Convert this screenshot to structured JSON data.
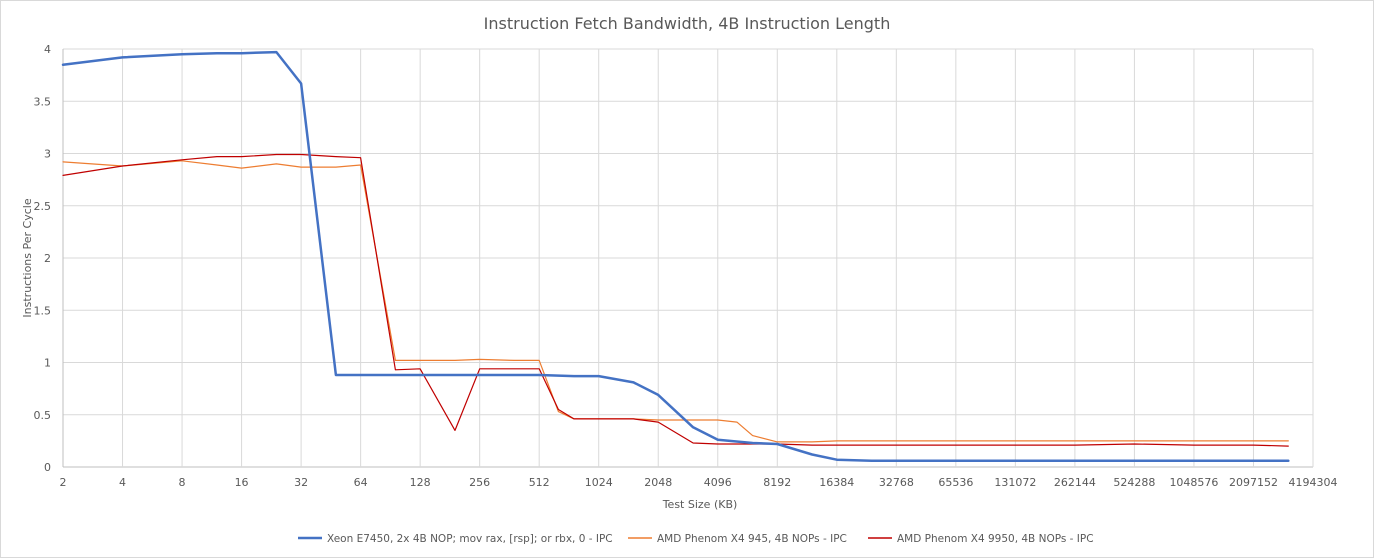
{
  "chart_data": {
    "type": "line",
    "title": "Instruction Fetch Bandwidth, 4B Instruction Length",
    "xlabel": "Test Size (KB)",
    "ylabel": "Instructions Per Cycle",
    "x_scale": "log2",
    "x_ticks": [
      "2",
      "4",
      "8",
      "16",
      "32",
      "64",
      "128",
      "256",
      "512",
      "1024",
      "2048",
      "4096",
      "8192",
      "16384",
      "32768",
      "65536",
      "131072",
      "262144",
      "524288",
      "1048576",
      "2097152",
      "4194304"
    ],
    "y_ticks": [
      "0",
      "0.5",
      "1",
      "1.5",
      "2",
      "2.5",
      "3",
      "3.5",
      "4"
    ],
    "ylim": [
      0,
      4
    ],
    "grid": true,
    "legend_position": "bottom",
    "series": [
      {
        "name": "Xeon E7450, 2x 4B NOP; mov rax, [rsp]; or rbx, 0 - IPC",
        "color": "#4472c4",
        "stroke": 2.5,
        "x": [
          2,
          4,
          8,
          12,
          16,
          24,
          32,
          48,
          64,
          96,
          128,
          192,
          256,
          384,
          512,
          768,
          1024,
          1536,
          2048,
          3072,
          4096,
          6144,
          8192,
          12288,
          16384,
          24576,
          32768,
          65536,
          131072,
          262144,
          524288,
          1048576,
          2097152,
          3145728
        ],
        "values": [
          3.85,
          3.92,
          3.95,
          3.96,
          3.96,
          3.97,
          3.67,
          0.88,
          0.88,
          0.88,
          0.88,
          0.88,
          0.88,
          0.88,
          0.88,
          0.87,
          0.87,
          0.81,
          0.69,
          0.38,
          0.26,
          0.23,
          0.22,
          0.12,
          0.07,
          0.06,
          0.06,
          0.06,
          0.06,
          0.06,
          0.06,
          0.06,
          0.06,
          0.06
        ]
      },
      {
        "name": "AMD Phenom X4 945, 4B NOPs - IPC",
        "color": "#ed7d31",
        "stroke": 1.2,
        "x": [
          2,
          4,
          8,
          12,
          16,
          24,
          32,
          48,
          64,
          96,
          128,
          192,
          256,
          384,
          512,
          640,
          768,
          1024,
          1536,
          2048,
          3072,
          4096,
          5120,
          6144,
          8192,
          12288,
          16384,
          32768,
          65536,
          131072,
          262144,
          524288,
          1048576,
          2097152,
          3145728
        ],
        "values": [
          2.92,
          2.88,
          2.93,
          2.89,
          2.86,
          2.9,
          2.87,
          2.87,
          2.89,
          1.02,
          1.02,
          1.02,
          1.03,
          1.02,
          1.02,
          0.53,
          0.46,
          0.46,
          0.46,
          0.45,
          0.45,
          0.45,
          0.43,
          0.3,
          0.24,
          0.24,
          0.25,
          0.25,
          0.25,
          0.25,
          0.25,
          0.25,
          0.25,
          0.25,
          0.25
        ]
      },
      {
        "name": "AMD Phenom X4 9950, 4B NOPs - IPC",
        "color": "#c00000",
        "stroke": 1.2,
        "x": [
          2,
          4,
          8,
          12,
          16,
          24,
          32,
          48,
          64,
          96,
          128,
          192,
          256,
          384,
          512,
          640,
          768,
          1024,
          1536,
          2048,
          3072,
          4096,
          6144,
          8192,
          12288,
          16384,
          32768,
          65536,
          131072,
          262144,
          524288,
          1048576,
          2097152,
          3145728
        ],
        "values": [
          2.79,
          2.88,
          2.94,
          2.97,
          2.97,
          2.99,
          2.99,
          2.97,
          2.96,
          0.93,
          0.94,
          0.35,
          0.94,
          0.94,
          0.94,
          0.55,
          0.46,
          0.46,
          0.46,
          0.43,
          0.23,
          0.22,
          0.22,
          0.22,
          0.21,
          0.21,
          0.21,
          0.21,
          0.21,
          0.21,
          0.22,
          0.21,
          0.21,
          0.2
        ]
      }
    ]
  }
}
